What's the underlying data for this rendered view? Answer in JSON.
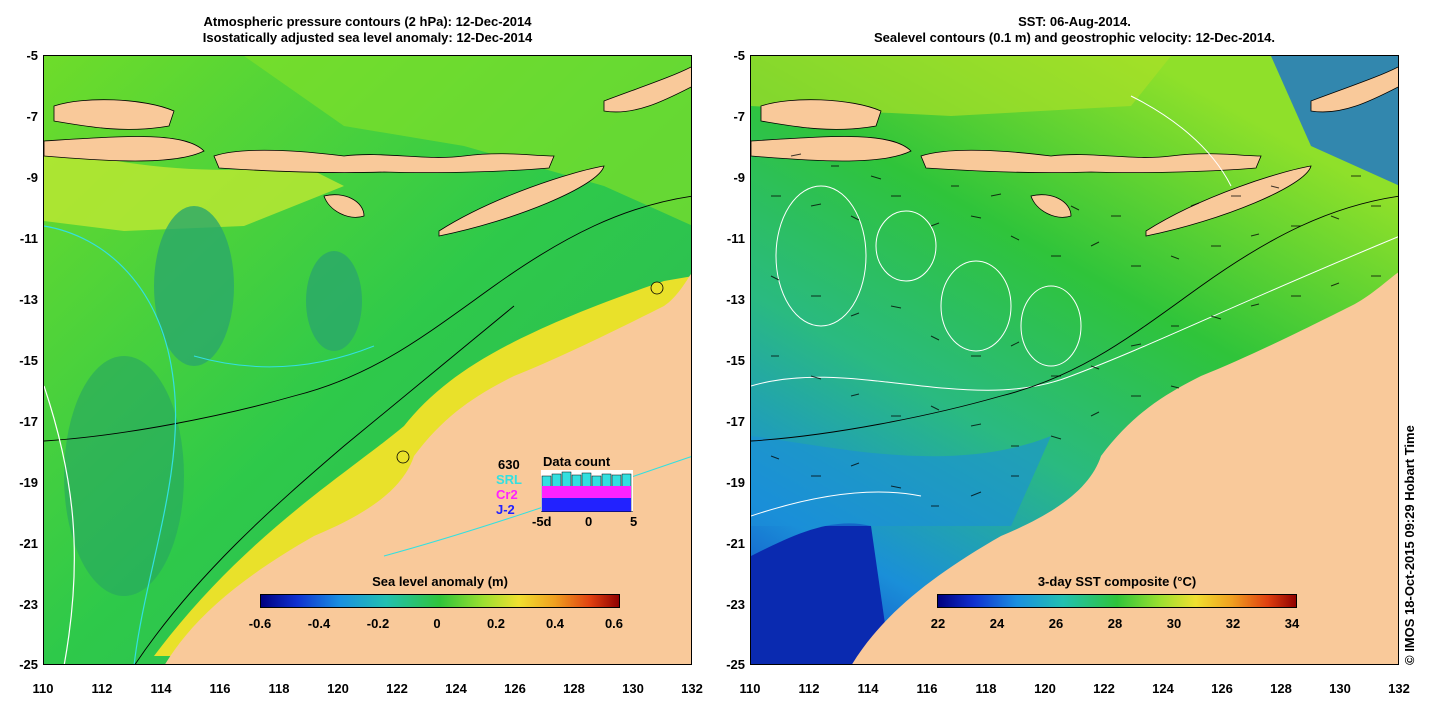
{
  "left_panel": {
    "title_line1": "Atmospheric pressure contours (2 hPa): 12-Dec-2014",
    "title_line2": "Isostatically adjusted sea level anomaly: 12-Dec-2014",
    "colorbar": {
      "title": "Sea level anomaly (m)",
      "ticks": [
        "-0.6",
        "-0.4",
        "-0.2",
        "0",
        "0.2",
        "0.4",
        "0.6"
      ]
    },
    "data_count": {
      "title": "Data count",
      "max": "630",
      "sat1": "SRL",
      "sat2": "Cr2",
      "sat3": "J-2",
      "x_ticks": [
        "-5d",
        "0",
        "5"
      ],
      "colors": {
        "sat1": "#33e0e0",
        "sat2": "#ff22ff",
        "sat3": "#2222ff"
      }
    }
  },
  "right_panel": {
    "title_line1": "SST: 06-Aug-2014.",
    "title_line2": "Sealevel contours (0.1 m) and geostrophic velocity: 12-Dec-2014.",
    "colorbar": {
      "title": "3-day SST composite (°C)",
      "ticks": [
        "22",
        "24",
        "26",
        "28",
        "30",
        "32",
        "34"
      ]
    }
  },
  "axes": {
    "lat_ticks": [
      "-5",
      "-7",
      "-9",
      "-11",
      "-13",
      "-15",
      "-17",
      "-19",
      "-21",
      "-23",
      "-25"
    ],
    "lon_ticks": [
      "110",
      "112",
      "114",
      "116",
      "118",
      "120",
      "122",
      "124",
      "126",
      "128",
      "130",
      "132"
    ]
  },
  "credit": "© IMOS 18-Oct-2015 09:29 Hobart Time",
  "colors": {
    "land": "#f9c99a",
    "ocean_green": "#2fc43a",
    "sst_blue": "#1a8fd8"
  }
}
